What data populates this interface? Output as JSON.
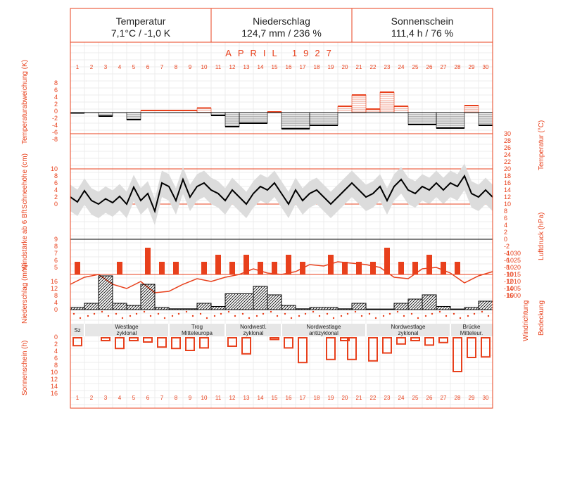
{
  "header": {
    "temperature": {
      "title": "Temperatur",
      "value": "7,1°C / -1,0 K"
    },
    "precipitation": {
      "title": "Niederschlag",
      "value": "124,7 mm / 236 %"
    },
    "sunshine": {
      "title": "Sonnenschein",
      "value": "111,4 h / 76 %"
    }
  },
  "month_title": "APRIL 1927",
  "axis_labels": {
    "temp_anomaly": "Temperaturabweichung (K)",
    "snow": "Schneehöhe (cm)",
    "wind": "Windstärke ab 6 Bft",
    "precip": "Niederschlag (mm)",
    "sunshine": "Sonnenschein (h)",
    "temperature": "Temperatur (°C)",
    "pressure": "Luftdruck (hPa)",
    "wind_direction": "Windrichtung",
    "cloud_cover": "Bedeckung"
  },
  "colors": {
    "accent": "#e8401c",
    "black": "#000000",
    "grey_band": "#dcdcdc"
  },
  "chart_data": {
    "type": "composite",
    "days": [
      1,
      2,
      3,
      4,
      5,
      6,
      7,
      8,
      9,
      10,
      11,
      12,
      13,
      14,
      15,
      16,
      17,
      18,
      19,
      20,
      21,
      22,
      23,
      24,
      25,
      26,
      27,
      28,
      29,
      30
    ],
    "temp_anomaly_ticks": [
      "8",
      "6",
      "4",
      "2",
      "0",
      "-2",
      "-4",
      "-6",
      "-8"
    ],
    "temperature_ticks": [
      "30",
      "28",
      "26",
      "24",
      "22",
      "20",
      "18",
      "16",
      "14",
      "12",
      "10",
      "8",
      "6",
      "4",
      "2",
      "0",
      "-2",
      "-4",
      "-6",
      "-8",
      "-10",
      "-12",
      "-14",
      "-16"
    ],
    "snow_ticks": [
      "10",
      "8",
      "6",
      "4",
      "2",
      "0"
    ],
    "wind_ticks": [
      "9",
      "8",
      "7",
      "6",
      "5"
    ],
    "precip_ticks": [
      "16",
      "12",
      "8",
      "4",
      "0"
    ],
    "sunshine_ticks": [
      "0",
      "2",
      "4",
      "6",
      "8",
      "10",
      "12",
      "14",
      "16"
    ],
    "pressure_ticks": [
      "1030",
      "1025",
      "1020",
      "1015",
      "1010",
      "1005",
      "1000"
    ],
    "temp_anomaly_weekly": [
      {
        "from": 1,
        "to": 2,
        "value": -0.1
      },
      {
        "from": 3,
        "to": 4,
        "value": -1.0
      },
      {
        "from": 5,
        "to": 6,
        "value": -2.0
      },
      {
        "from": 6,
        "to": 10,
        "value": 0.6
      },
      {
        "from": 10,
        "to": 11,
        "value": 1.3
      },
      {
        "from": 11,
        "to": 12,
        "value": -0.8
      },
      {
        "from": 12,
        "to": 13,
        "value": -4.0
      },
      {
        "from": 13,
        "to": 15,
        "value": -3.0
      },
      {
        "from": 15,
        "to": 16,
        "value": 0.2
      },
      {
        "from": 16,
        "to": 18,
        "value": -4.6
      },
      {
        "from": 18,
        "to": 20,
        "value": -3.6
      },
      {
        "from": 20,
        "to": 21,
        "value": 1.8
      },
      {
        "from": 21,
        "to": 22,
        "value": 5.0
      },
      {
        "from": 22,
        "to": 23,
        "value": 1.0
      },
      {
        "from": 23,
        "to": 24,
        "value": 5.8
      },
      {
        "from": 24,
        "to": 25,
        "value": 1.8
      },
      {
        "from": 25,
        "to": 27,
        "value": -3.4
      },
      {
        "from": 27,
        "to": 29,
        "value": -4.4
      },
      {
        "from": 29,
        "to": 30,
        "value": 2.0
      },
      {
        "from": 30,
        "to": 31,
        "value": -3.6
      }
    ],
    "mean_temperature": [
      {
        "x": 1,
        "y": 2.0
      },
      {
        "x": 1.5,
        "y": 0.6
      },
      {
        "x": 2,
        "y": 3.8
      },
      {
        "x": 2.5,
        "y": 1.0
      },
      {
        "x": 3,
        "y": 0.0
      },
      {
        "x": 3.5,
        "y": 1.5
      },
      {
        "x": 4,
        "y": 0.4
      },
      {
        "x": 4.5,
        "y": 2.2
      },
      {
        "x": 5,
        "y": 0.0
      },
      {
        "x": 5.5,
        "y": 4.8
      },
      {
        "x": 6,
        "y": 1.0
      },
      {
        "x": 6.5,
        "y": 3.0
      },
      {
        "x": 7,
        "y": -2.0
      },
      {
        "x": 7.5,
        "y": 6.0
      },
      {
        "x": 8,
        "y": 5.0
      },
      {
        "x": 8.5,
        "y": 1.0
      },
      {
        "x": 9,
        "y": 7.0
      },
      {
        "x": 9.5,
        "y": 2.0
      },
      {
        "x": 10,
        "y": 5.0
      },
      {
        "x": 10.5,
        "y": 6.0
      },
      {
        "x": 11,
        "y": 4.0
      },
      {
        "x": 11.5,
        "y": 3.0
      },
      {
        "x": 12,
        "y": 1.0
      },
      {
        "x": 12.5,
        "y": 4.0
      },
      {
        "x": 13,
        "y": 2.0
      },
      {
        "x": 13.5,
        "y": 0.0
      },
      {
        "x": 14,
        "y": 3.0
      },
      {
        "x": 14.5,
        "y": 5.0
      },
      {
        "x": 15,
        "y": 4.0
      },
      {
        "x": 15.5,
        "y": 6.0
      },
      {
        "x": 16,
        "y": 3.0
      },
      {
        "x": 16.5,
        "y": 0.0
      },
      {
        "x": 17,
        "y": 4.0
      },
      {
        "x": 17.5,
        "y": 1.0
      },
      {
        "x": 18,
        "y": 3.0
      },
      {
        "x": 18.5,
        "y": 4.0
      },
      {
        "x": 19,
        "y": 2.0
      },
      {
        "x": 19.5,
        "y": 0.0
      },
      {
        "x": 20,
        "y": 2.0
      },
      {
        "x": 20.5,
        "y": 4.0
      },
      {
        "x": 21,
        "y": 6.0
      },
      {
        "x": 21.5,
        "y": 4.0
      },
      {
        "x": 22,
        "y": 2.0
      },
      {
        "x": 22.5,
        "y": 3.0
      },
      {
        "x": 23,
        "y": 5.0
      },
      {
        "x": 23.5,
        "y": 1.0
      },
      {
        "x": 24,
        "y": 5.0
      },
      {
        "x": 24.5,
        "y": 7.0
      },
      {
        "x": 25,
        "y": 4.0
      },
      {
        "x": 25.5,
        "y": 3.0
      },
      {
        "x": 26,
        "y": 5.0
      },
      {
        "x": 26.5,
        "y": 4.0
      },
      {
        "x": 27,
        "y": 6.0
      },
      {
        "x": 27.5,
        "y": 4.0
      },
      {
        "x": 28,
        "y": 6.0
      },
      {
        "x": 28.5,
        "y": 5.0
      },
      {
        "x": 29,
        "y": 8.0
      },
      {
        "x": 29.5,
        "y": 3.0
      },
      {
        "x": 30,
        "y": 2.0
      },
      {
        "x": 30.5,
        "y": 4.0
      },
      {
        "x": 31,
        "y": 2.0
      }
    ],
    "wind_days": [
      {
        "day": 1,
        "value": 6
      },
      {
        "day": 4,
        "value": 6
      },
      {
        "day": 6,
        "value": 8
      },
      {
        "day": 7,
        "value": 6
      },
      {
        "day": 8,
        "value": 6
      },
      {
        "day": 10,
        "value": 6
      },
      {
        "day": 11,
        "value": 7
      },
      {
        "day": 12,
        "value": 6
      },
      {
        "day": 13,
        "value": 7
      },
      {
        "day": 14,
        "value": 6
      },
      {
        "day": 15,
        "value": 6
      },
      {
        "day": 16,
        "value": 7
      },
      {
        "day": 17,
        "value": 6
      },
      {
        "day": 19,
        "value": 7
      },
      {
        "day": 20,
        "value": 6
      },
      {
        "day": 21,
        "value": 6
      },
      {
        "day": 22,
        "value": 6
      },
      {
        "day": 23,
        "value": 8
      },
      {
        "day": 24,
        "value": 6
      },
      {
        "day": 25,
        "value": 6
      },
      {
        "day": 26,
        "value": 7
      },
      {
        "day": 27,
        "value": 6
      },
      {
        "day": 28,
        "value": 6
      }
    ],
    "pressure": [
      1008,
      1013,
      1015,
      1008,
      1005,
      1010,
      1002,
      1003,
      1008,
      1012,
      1010,
      1013,
      1015,
      1019,
      1016,
      1015,
      1017,
      1022,
      1021,
      1024,
      1023,
      1022,
      1020,
      1013,
      1012,
      1019,
      1020,
      1016,
      1009,
      1014,
      1017
    ],
    "precip_weekly": [
      {
        "from": 1,
        "to": 2,
        "value": 1.0
      },
      {
        "from": 2,
        "to": 3,
        "value": 3.0
      },
      {
        "from": 3,
        "to": 4,
        "value": 16.0
      },
      {
        "from": 4,
        "to": 5,
        "value": 3.0
      },
      {
        "from": 5,
        "to": 6,
        "value": 2.0
      },
      {
        "from": 6,
        "to": 7,
        "value": 12.0
      },
      {
        "from": 7,
        "to": 8,
        "value": 1.0
      },
      {
        "from": 8,
        "to": 10,
        "value": 0.4
      },
      {
        "from": 10,
        "to": 11,
        "value": 3.0
      },
      {
        "from": 11,
        "to": 12,
        "value": 1.5
      },
      {
        "from": 12,
        "to": 14,
        "value": 7.5
      },
      {
        "from": 14,
        "to": 15,
        "value": 11.0
      },
      {
        "from": 15,
        "to": 16,
        "value": 7.0
      },
      {
        "from": 16,
        "to": 17,
        "value": 2.0
      },
      {
        "from": 17,
        "to": 18,
        "value": 0.4
      },
      {
        "from": 18,
        "to": 20,
        "value": 1.0
      },
      {
        "from": 20,
        "to": 21,
        "value": 0.4
      },
      {
        "from": 21,
        "to": 22,
        "value": 3.0
      },
      {
        "from": 22,
        "to": 24,
        "value": 0.3
      },
      {
        "from": 24,
        "to": 25,
        "value": 3.0
      },
      {
        "from": 25,
        "to": 26,
        "value": 5.0
      },
      {
        "from": 26,
        "to": 27,
        "value": 7.0
      },
      {
        "from": 27,
        "to": 28,
        "value": 1.5
      },
      {
        "from": 28,
        "to": 29,
        "value": 0.3
      },
      {
        "from": 29,
        "to": 30,
        "value": 1.0
      },
      {
        "from": 30,
        "to": 31,
        "value": 4.0
      }
    ],
    "sunshine_hours": [
      {
        "day": 1,
        "value": 2.8
      },
      {
        "day": 3,
        "value": 1.0
      },
      {
        "day": 4,
        "value": 3.8
      },
      {
        "day": 5,
        "value": 1.0
      },
      {
        "day": 6,
        "value": 1.5
      },
      {
        "day": 7,
        "value": 3.3
      },
      {
        "day": 8,
        "value": 3.8
      },
      {
        "day": 9,
        "value": 4.5
      },
      {
        "day": 10,
        "value": 3.6
      },
      {
        "day": 12,
        "value": 3.0
      },
      {
        "day": 13,
        "value": 5.7
      },
      {
        "day": 15,
        "value": 0.6
      },
      {
        "day": 16,
        "value": 3.6
      },
      {
        "day": 17,
        "value": 8.8
      },
      {
        "day": 19,
        "value": 7.7
      },
      {
        "day": 20,
        "value": 1.0
      },
      {
        "day": 20.5,
        "value": 7.7
      },
      {
        "day": 22,
        "value": 8.2
      },
      {
        "day": 23,
        "value": 5.4
      },
      {
        "day": 24,
        "value": 2.2
      },
      {
        "day": 25,
        "value": 1.0
      },
      {
        "day": 26,
        "value": 2.6
      },
      {
        "day": 27,
        "value": 1.7
      },
      {
        "day": 28,
        "value": 12.0
      },
      {
        "day": 29,
        "value": 7.0
      },
      {
        "day": 30,
        "value": 6.8
      }
    ],
    "weather_types": [
      {
        "from": 1,
        "to": 2,
        "label": "Sz"
      },
      {
        "from": 2,
        "to": 8,
        "label": "Westlage zyklonal"
      },
      {
        "from": 8,
        "to": 12,
        "label": "Trog Mitteleuropa"
      },
      {
        "from": 12,
        "to": 16,
        "label": "Nordwestl. zyklonal"
      },
      {
        "from": 16,
        "to": 22,
        "label": "Nordwestlage antizyklonal"
      },
      {
        "from": 22,
        "to": 28,
        "label": "Nordwestlage zyklonal"
      },
      {
        "from": 28,
        "to": 31,
        "label": "Brücke Mitteleur."
      }
    ]
  }
}
